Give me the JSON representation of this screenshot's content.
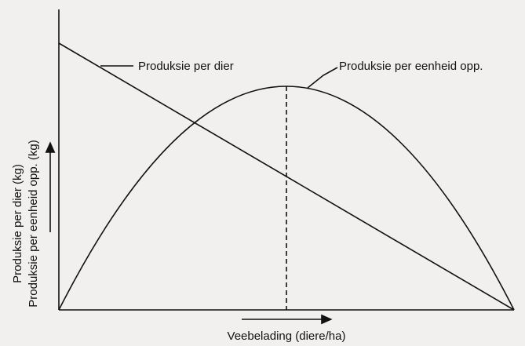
{
  "curves": [
    {
      "label": "Produksie per dier"
    },
    {
      "label": "Produksie per eenheid opp."
    }
  ],
  "axes": {
    "y_labels": [
      "Produksie per dier (kg)",
      "Produksie per eenheid opp. (kg)"
    ],
    "x_label": "Veebelading (diere/ha)"
  }
}
